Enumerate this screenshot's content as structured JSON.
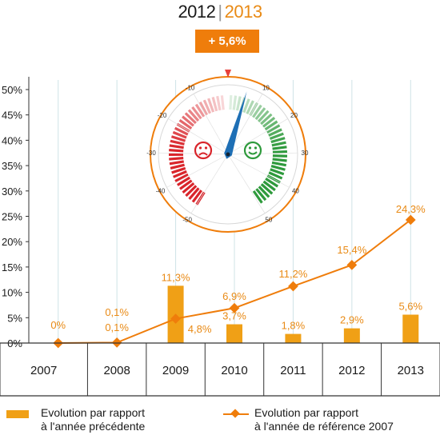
{
  "header": {
    "year_previous": "2012",
    "year_current": "2013",
    "delta_badge": "+ 5,6%"
  },
  "colors": {
    "bar": "#f0a016",
    "line": "#ef7d0b",
    "label": "#e98a15",
    "grid": "#cfe3e6",
    "gauge_ring": "#ef7d0b",
    "gauge_red": "#d9252b",
    "gauge_green": "#2e9a3c",
    "needle": "#1e6fb5"
  },
  "chart_data": {
    "type": "bar",
    "categories": [
      "2007",
      "2008",
      "2009",
      "2010",
      "2011",
      "2012",
      "2013"
    ],
    "ylim": [
      0,
      50
    ],
    "y_ticks": [
      "0%",
      "5%",
      "10%",
      "15%",
      "20%",
      "25%",
      "30%",
      "35%",
      "40%",
      "45%",
      "50%"
    ],
    "grid": true,
    "series": [
      {
        "name": "Evolution par rapport à l'année précédente",
        "kind": "bar",
        "values": [
          0,
          0.1,
          11.3,
          3.7,
          1.8,
          2.9,
          5.6
        ],
        "labels": [
          "0%",
          "0,1%",
          "11,3%",
          "3,7%",
          "1,8%",
          "2,9%",
          "5,6%"
        ]
      },
      {
        "name": "Evolution par rapport à l'année de référence 2007",
        "kind": "line",
        "values": [
          0,
          0.1,
          4.8,
          6.9,
          11.2,
          15.4,
          24.3
        ],
        "labels": [
          "",
          "0,1%",
          "4,8%",
          "6,9%",
          "11,2%",
          "15,4%",
          "24,3%"
        ]
      }
    ],
    "legend": {
      "bar_line1": "Evolution par rapport",
      "bar_line2": "à l'année précédente",
      "line_line1": "Evolution par rapport",
      "line_line2": "à l'année de référence 2007",
      "placement": "bottom"
    }
  },
  "gauge": {
    "value": 5.6,
    "min": -50,
    "max": 50,
    "ticks": [
      "-50",
      "-40",
      "-30",
      "-20",
      "-10",
      "10",
      "20",
      "30",
      "40",
      "50"
    ]
  }
}
